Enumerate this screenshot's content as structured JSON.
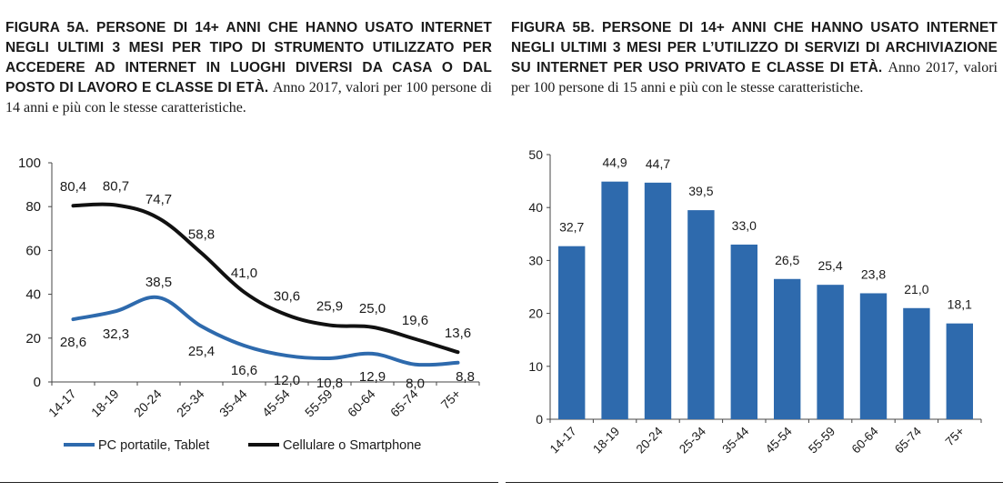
{
  "figure_a": {
    "title": "FIGURA 5A. PERSONE DI 14+ ANNI CHE HANNO USATO INTERNET NEGLI ULTIMI 3 MESI PER TIPO DI STRUMENTO UTILIZZATO PER ACCEDERE AD INTERNET IN LUOGHI DIVERSI DA CASA O DAL POSTO DI LAVORO E CLASSE DI ETÀ.",
    "subtitle": "Anno 2017, valori per 100 persone di 14 anni e più con le stesse caratteristiche."
  },
  "figure_b": {
    "title": "FIGURA 5B. PERSONE DI 14+ ANNI CHE HANNO USATO INTERNET NEGLI ULTIMI 3 MESI PER L’UTILIZZO DI SERVIZI DI ARCHIVIAZIONE SU INTERNET PER USO PRIVATO E CLASSE DI ETÀ.",
    "subtitle": "Anno 2017, valori per 100 persone di 15 anni e più con le stesse caratteristiche."
  },
  "chart_data": [
    {
      "type": "line",
      "categories": [
        "14-17",
        "18-19",
        "20-24",
        "25-34",
        "35-44",
        "45-54",
        "55-59",
        "60-64",
        "65-74",
        "75+"
      ],
      "ylim": [
        0,
        100
      ],
      "yticks": [
        0,
        20,
        40,
        60,
        80,
        100
      ],
      "grid": false,
      "legend_position": "bottom",
      "series": [
        {
          "name": "PC portatile, Tablet",
          "color": "#2e6aad",
          "values": [
            28.6,
            32.3,
            38.5,
            25.4,
            16.6,
            12.0,
            10.8,
            12.9,
            8.0,
            8.8
          ],
          "labels": [
            "28,6",
            "32,3",
            "38,5",
            "25,4",
            "16,6",
            "12,0",
            "10,8",
            "12,9",
            "8,0",
            "8,8"
          ]
        },
        {
          "name": "Cellulare o Smartphone",
          "color": "#111111",
          "values": [
            80.4,
            80.7,
            74.7,
            58.8,
            41.0,
            30.6,
            25.9,
            25.0,
            19.6,
            13.6
          ],
          "labels": [
            "80,4",
            "80,7",
            "74,7",
            "58,8",
            "41,0",
            "30,6",
            "25,9",
            "25,0",
            "19,6",
            "13,6"
          ]
        }
      ]
    },
    {
      "type": "bar",
      "categories": [
        "14-17",
        "18-19",
        "20-24",
        "25-34",
        "35-44",
        "45-54",
        "55-59",
        "60-64",
        "65-74",
        "75+"
      ],
      "values": [
        32.7,
        44.9,
        44.7,
        39.5,
        33.0,
        26.5,
        25.4,
        23.8,
        21.0,
        18.1
      ],
      "labels": [
        "32,7",
        "44,9",
        "44,7",
        "39,5",
        "33,0",
        "26,5",
        "25,4",
        "23,8",
        "21,0",
        "18,1"
      ],
      "ylim": [
        0,
        50
      ],
      "yticks": [
        0,
        10,
        20,
        30,
        40,
        50
      ],
      "grid": false,
      "color": "#2e6aad"
    }
  ]
}
